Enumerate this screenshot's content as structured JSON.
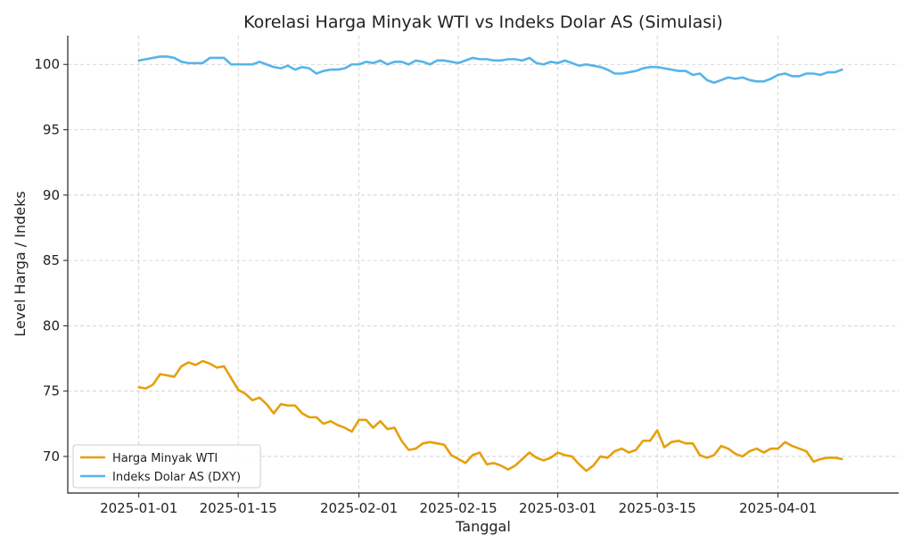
{
  "chart_data": {
    "type": "line",
    "title": "Korelasi Harga Minyak WTI vs Indeks Dolar AS (Simulasi)",
    "xlabel": "Tanggal",
    "ylabel": "Level Harga / Indeks",
    "ylim": [
      67.2,
      102.2
    ],
    "yticks": [
      70,
      75,
      80,
      85,
      90,
      95,
      100
    ],
    "xlim": [
      "2024-12-22",
      "2025-04-18"
    ],
    "xticks": [
      "2025-01-01",
      "2025-01-15",
      "2025-02-01",
      "2025-02-15",
      "2025-03-01",
      "2025-03-15",
      "2025-04-01"
    ],
    "grid": true,
    "legend_position": "lower-left",
    "start_date": "2025-01-01",
    "series": [
      {
        "name": "Harga Minyak WTI",
        "color": "#E5A00D",
        "values": [
          75.3,
          75.2,
          75.5,
          76.3,
          76.2,
          76.1,
          76.9,
          77.2,
          77.0,
          77.3,
          77.1,
          76.8,
          76.9,
          76.0,
          75.1,
          74.8,
          74.3,
          74.5,
          74.0,
          73.3,
          74.0,
          73.9,
          73.9,
          73.3,
          73.0,
          73.0,
          72.5,
          72.7,
          72.4,
          72.2,
          71.9,
          72.8,
          72.8,
          72.2,
          72.7,
          72.1,
          72.2,
          71.2,
          70.5,
          70.6,
          71.0,
          71.1,
          71.0,
          70.9,
          70.1,
          69.8,
          69.5,
          70.1,
          70.3,
          69.4,
          69.5,
          69.3,
          69.0,
          69.3,
          69.8,
          70.3,
          69.9,
          69.7,
          69.9,
          70.3,
          70.1,
          70.0,
          69.4,
          68.9,
          69.3,
          70.0,
          69.9,
          70.4,
          70.6,
          70.3,
          70.5,
          71.2,
          71.2,
          72.0,
          70.7,
          71.1,
          71.2,
          71.0,
          71.0,
          70.1,
          69.9,
          70.1,
          70.8,
          70.6,
          70.2,
          70.0,
          70.4,
          70.6,
          70.3,
          70.6,
          70.6,
          71.1,
          70.8,
          70.6,
          70.4,
          69.6,
          69.8,
          69.9,
          69.9,
          69.8
        ]
      },
      {
        "name": "Indeks Dolar AS (DXY)",
        "color": "#56B4E9",
        "values": [
          100.3,
          100.4,
          100.5,
          100.6,
          100.6,
          100.5,
          100.2,
          100.1,
          100.1,
          100.1,
          100.5,
          100.5,
          100.5,
          100.0,
          100.0,
          100.0,
          100.0,
          100.2,
          100.0,
          99.8,
          99.7,
          99.9,
          99.6,
          99.8,
          99.7,
          99.3,
          99.5,
          99.6,
          99.6,
          99.7,
          100.0,
          100.0,
          100.2,
          100.1,
          100.3,
          100.0,
          100.2,
          100.2,
          100.0,
          100.3,
          100.2,
          100.0,
          100.3,
          100.3,
          100.2,
          100.1,
          100.3,
          100.5,
          100.4,
          100.4,
          100.3,
          100.3,
          100.4,
          100.4,
          100.3,
          100.5,
          100.1,
          100.0,
          100.2,
          100.1,
          100.3,
          100.1,
          99.9,
          100.0,
          99.9,
          99.8,
          99.6,
          99.3,
          99.3,
          99.4,
          99.5,
          99.7,
          99.8,
          99.8,
          99.7,
          99.6,
          99.5,
          99.5,
          99.2,
          99.3,
          98.8,
          98.6,
          98.8,
          99.0,
          98.9,
          99.0,
          98.8,
          98.7,
          98.7,
          98.9,
          99.2,
          99.3,
          99.1,
          99.1,
          99.3,
          99.3,
          99.2,
          99.4,
          99.4,
          99.6
        ]
      }
    ]
  }
}
